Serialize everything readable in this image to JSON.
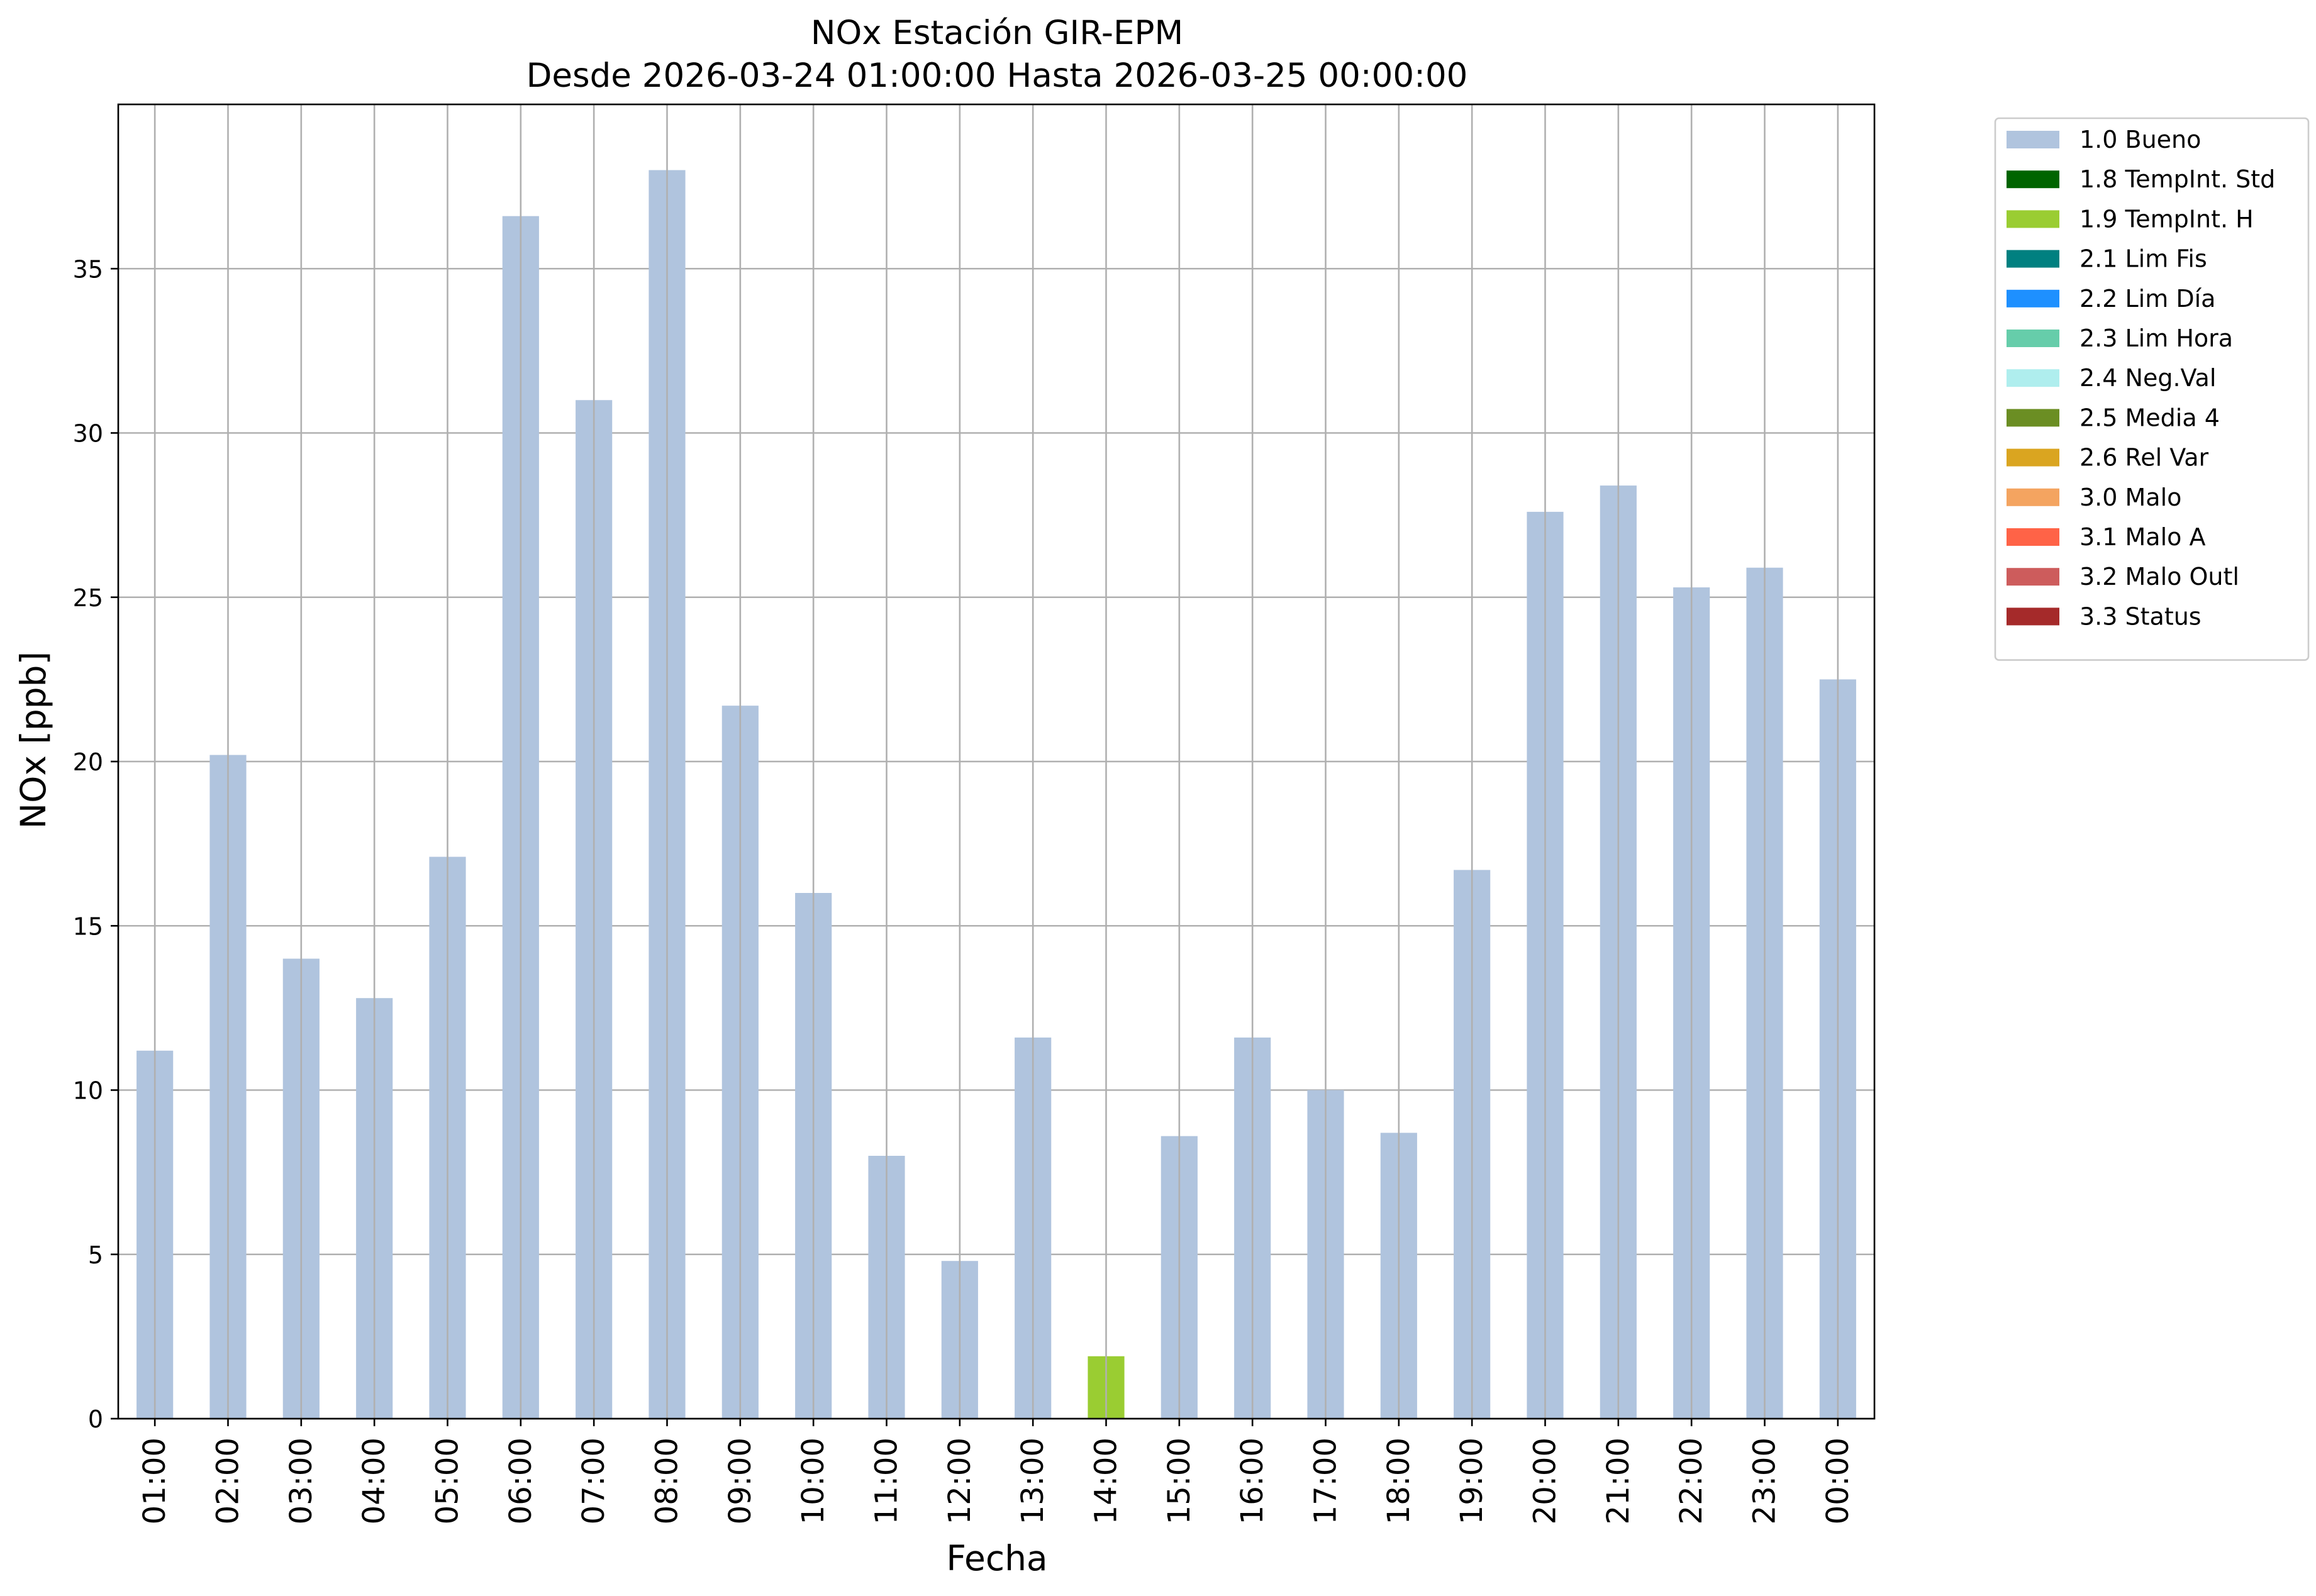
{
  "chart_data": {
    "type": "bar",
    "stacked": true,
    "title_line1": "NOx Estación GIR-EPM",
    "title_line2": "Desde 2026-03-24 01:00:00 Hasta 2026-03-25 00:00:00",
    "xlabel": "Fecha",
    "ylabel": "NOx [ppb]",
    "ylim": [
      0,
      40
    ],
    "yticks": [
      0,
      5,
      10,
      15,
      20,
      25,
      30,
      35
    ],
    "grid": true,
    "legend_position": "outside-top-right",
    "categories": [
      "01:00",
      "02:00",
      "03:00",
      "04:00",
      "05:00",
      "06:00",
      "07:00",
      "08:00",
      "09:00",
      "10:00",
      "11:00",
      "12:00",
      "13:00",
      "14:00",
      "15:00",
      "16:00",
      "17:00",
      "18:00",
      "19:00",
      "20:00",
      "21:00",
      "22:00",
      "23:00",
      "00:00"
    ],
    "series": [
      {
        "name": "1.0 Bueno",
        "color": "#b0c4de",
        "values": [
          11.2,
          20.2,
          14.0,
          12.8,
          17.1,
          36.6,
          31.0,
          38.0,
          21.7,
          16.0,
          8.0,
          4.8,
          11.6,
          0,
          8.6,
          11.6,
          10.0,
          8.7,
          16.7,
          27.6,
          28.4,
          25.3,
          25.9,
          22.5
        ]
      },
      {
        "name": "1.8 TempInt. Std",
        "color": "#006400",
        "values": [
          0,
          0,
          0,
          0,
          0,
          0,
          0,
          0,
          0,
          0,
          0,
          0,
          0,
          0,
          0,
          0,
          0,
          0,
          0,
          0,
          0,
          0,
          0,
          0
        ]
      },
      {
        "name": "1.9 TempInt. H",
        "color": "#9acd32",
        "values": [
          0,
          0,
          0,
          0,
          0,
          0,
          0,
          0,
          0,
          0,
          0,
          0,
          0,
          1.9,
          0,
          0,
          0,
          0,
          0,
          0,
          0,
          0,
          0,
          0
        ]
      },
      {
        "name": "2.1 Lim Fis",
        "color": "#008080",
        "values": [
          0,
          0,
          0,
          0,
          0,
          0,
          0,
          0,
          0,
          0,
          0,
          0,
          0,
          0,
          0,
          0,
          0,
          0,
          0,
          0,
          0,
          0,
          0,
          0
        ]
      },
      {
        "name": "2.2 Lim Día",
        "color": "#1e90ff",
        "values": [
          0,
          0,
          0,
          0,
          0,
          0,
          0,
          0,
          0,
          0,
          0,
          0,
          0,
          0,
          0,
          0,
          0,
          0,
          0,
          0,
          0,
          0,
          0,
          0
        ]
      },
      {
        "name": "2.3 Lim Hora",
        "color": "#66cdaa",
        "values": [
          0,
          0,
          0,
          0,
          0,
          0,
          0,
          0,
          0,
          0,
          0,
          0,
          0,
          0,
          0,
          0,
          0,
          0,
          0,
          0,
          0,
          0,
          0,
          0
        ]
      },
      {
        "name": "2.4 Neg.Val",
        "color": "#afeeee",
        "values": [
          0,
          0,
          0,
          0,
          0,
          0,
          0,
          0,
          0,
          0,
          0,
          0,
          0,
          0,
          0,
          0,
          0,
          0,
          0,
          0,
          0,
          0,
          0,
          0
        ]
      },
      {
        "name": "2.5 Media 4",
        "color": "#6b8e23",
        "values": [
          0,
          0,
          0,
          0,
          0,
          0,
          0,
          0,
          0,
          0,
          0,
          0,
          0,
          0,
          0,
          0,
          0,
          0,
          0,
          0,
          0,
          0,
          0,
          0
        ]
      },
      {
        "name": "2.6 Rel Var",
        "color": "#daa520",
        "values": [
          0,
          0,
          0,
          0,
          0,
          0,
          0,
          0,
          0,
          0,
          0,
          0,
          0,
          0,
          0,
          0,
          0,
          0,
          0,
          0,
          0,
          0,
          0,
          0
        ]
      },
      {
        "name": "3.0 Malo",
        "color": "#f4a460",
        "values": [
          0,
          0,
          0,
          0,
          0,
          0,
          0,
          0,
          0,
          0,
          0,
          0,
          0,
          0,
          0,
          0,
          0,
          0,
          0,
          0,
          0,
          0,
          0,
          0
        ]
      },
      {
        "name": "3.1 Malo A",
        "color": "#ff6347",
        "values": [
          0,
          0,
          0,
          0,
          0,
          0,
          0,
          0,
          0,
          0,
          0,
          0,
          0,
          0,
          0,
          0,
          0,
          0,
          0,
          0,
          0,
          0,
          0,
          0
        ]
      },
      {
        "name": "3.2 Malo Outl",
        "color": "#cd5c5c",
        "values": [
          0,
          0,
          0,
          0,
          0,
          0,
          0,
          0,
          0,
          0,
          0,
          0,
          0,
          0,
          0,
          0,
          0,
          0,
          0,
          0,
          0,
          0,
          0,
          0
        ]
      },
      {
        "name": "3.3 Status",
        "color": "#a52a2a",
        "values": [
          0,
          0,
          0,
          0,
          0,
          0,
          0,
          0,
          0,
          0,
          0,
          0,
          0,
          0,
          0,
          0,
          0,
          0,
          0,
          0,
          0,
          0,
          0,
          0
        ]
      }
    ]
  }
}
